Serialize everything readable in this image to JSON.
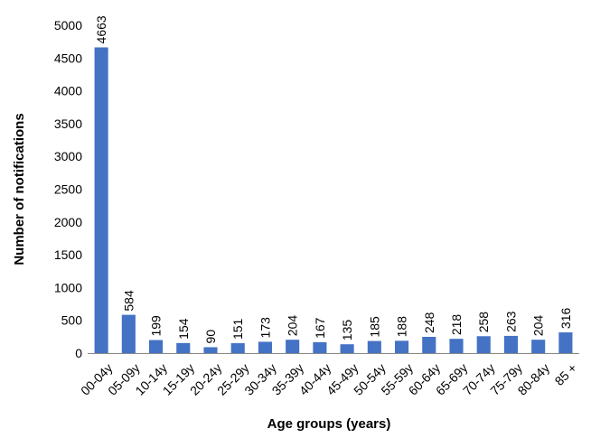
{
  "chart_data": {
    "type": "bar",
    "title": "",
    "xlabel": "Age groups (years)",
    "ylabel": "Number of notifications",
    "ylim": [
      0,
      5000
    ],
    "yticks": [
      "0",
      "500",
      "1000",
      "1500",
      "2000",
      "2500",
      "3000",
      "3500",
      "4000",
      "4500",
      "5000"
    ],
    "grid": false,
    "bar_color": "#4472C4",
    "categories": [
      "00-04y",
      "05-09y",
      "10-14y",
      "15-19y",
      "20-24y",
      "25-29y",
      "30-34y",
      "35-39y",
      "40-44y",
      "45-49y",
      "50-54y",
      "55-59y",
      "60-64y",
      "65-69y",
      "70-74y",
      "75-79y",
      "80-84y",
      "85 +"
    ],
    "values": [
      4663,
      584,
      199,
      154,
      90,
      151,
      173,
      204,
      167,
      135,
      185,
      188,
      248,
      218,
      258,
      263,
      204,
      316
    ],
    "data_labels": [
      "4663",
      "584",
      "199",
      "154",
      "90",
      "151",
      "173",
      "204",
      "167",
      "135",
      "185",
      "188",
      "248",
      "218",
      "258",
      "263",
      "204",
      "316"
    ]
  }
}
